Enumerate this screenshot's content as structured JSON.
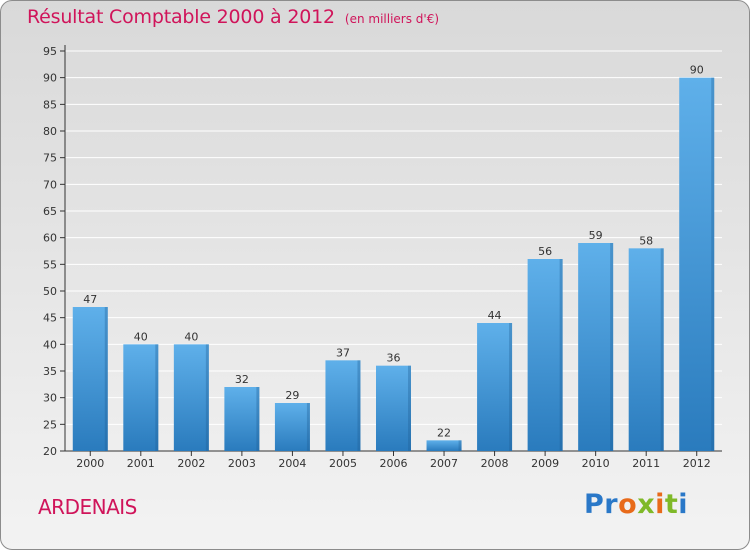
{
  "chart_data": {
    "type": "bar",
    "title": "Résultat Comptable 2000 à 2012",
    "subtitle": "(en milliers d'€)",
    "categories": [
      "2000",
      "2001",
      "2002",
      "2003",
      "2004",
      "2005",
      "2006",
      "2007",
      "2008",
      "2009",
      "2010",
      "2011",
      "2012"
    ],
    "values": [
      47,
      40,
      40,
      32,
      29,
      37,
      36,
      22,
      44,
      56,
      59,
      58,
      90
    ],
    "ylim": [
      20,
      95
    ],
    "yticks": [
      20,
      25,
      30,
      35,
      40,
      45,
      50,
      55,
      60,
      65,
      70,
      75,
      80,
      85,
      90,
      95
    ],
    "grid": true,
    "xlabel": "",
    "ylabel": ""
  },
  "footer": {
    "town": "ARDENAIS",
    "logo": "Proxiti"
  },
  "colors": {
    "title": "#d0145a",
    "bar_top": "#5fb0ea",
    "bar_bottom": "#2a7bbd",
    "grid": "#ffffff",
    "logo_letters": [
      "#2a78c8",
      "#2a78c8",
      "#e86a1a",
      "#7fb928",
      "#e86a1a",
      "#7fb928",
      "#2a78c8"
    ]
  }
}
